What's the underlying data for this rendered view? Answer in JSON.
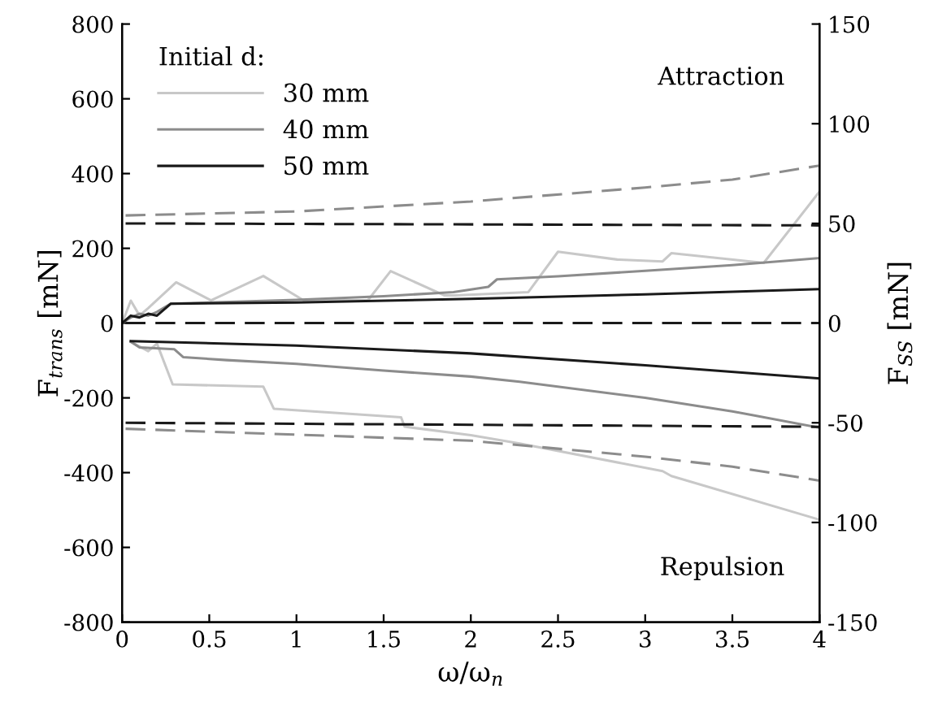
{
  "chart_data": {
    "type": "line",
    "xlabel": "ω/ω$_{n}$",
    "ylabel": "F$_{trans}$ [mN]",
    "y2label": "F$_{SS}$ [mN]",
    "legend_title": "Initial d:",
    "legend": "top left",
    "grid": false,
    "line_style": "solid",
    "marker": "none",
    "xlim": [
      0,
      4
    ],
    "xticks": [
      0,
      0.5,
      1,
      1.5,
      2,
      2.5,
      3,
      3.5,
      4
    ],
    "ylim": [
      -800,
      800
    ],
    "yticks": [
      -800,
      -600,
      -400,
      -200,
      0,
      200,
      400,
      600,
      800
    ],
    "y2lim": [
      -150,
      150
    ],
    "y2ticks": [
      -150,
      -100,
      -50,
      0,
      50,
      100,
      150
    ],
    "annotations": [
      "Attraction",
      "Repulsion"
    ],
    "series": [
      {
        "name": "30 mm",
        "color": "#c8c8c8",
        "x": [
          0,
          0.05,
          0.1,
          0.15,
          0.31,
          0.51,
          0.81,
          1.04,
          1.41,
          1.54,
          1.85,
          1.91,
          2.33,
          2.5,
          2.84,
          3.1,
          3.15,
          3.68,
          4
        ],
        "values": [
          0,
          60,
          20,
          40,
          109,
          61,
          126,
          61,
          61,
          139,
          74,
          74,
          83,
          191,
          170,
          165,
          187,
          161,
          352
        ]
      },
      {
        "name": "40 mm",
        "color": "#8c8c8c",
        "x": [
          0,
          0.05,
          0.1,
          0.15,
          0.2,
          0.28,
          0.5,
          1,
          1.5,
          1.9,
          2.1,
          2.15,
          2.5,
          3,
          3.5,
          4
        ],
        "values": [
          0,
          15,
          25,
          20,
          30,
          52,
          55,
          62,
          72,
          83,
          97,
          117,
          125,
          140,
          155,
          174
        ]
      },
      {
        "name": "50 mm",
        "color": "#1a1a1a",
        "x": [
          0,
          0.05,
          0.1,
          0.15,
          0.2,
          0.28,
          1,
          2,
          3,
          4
        ],
        "values": [
          0,
          20,
          15,
          25,
          20,
          52,
          55,
          65,
          77,
          91
        ]
      },
      {
        "color": "#c8c8c8",
        "x": [
          0.05,
          0.15,
          0.2,
          0.29,
          0.81,
          0.87,
          1.6,
          1.62,
          2,
          2.28,
          3.1,
          3.15,
          4
        ],
        "values": [
          -50,
          -75,
          -55,
          -164,
          -170,
          -229,
          -252,
          -277,
          -300,
          -322,
          -396,
          -409,
          -526
        ]
      },
      {
        "color": "#8c8c8c",
        "x": [
          0.05,
          0.1,
          0.3,
          0.35,
          0.6,
          1,
          1.5,
          2,
          2.28,
          3,
          3.5,
          4
        ],
        "values": [
          -50,
          -65,
          -70,
          -91,
          -99,
          -109,
          -127,
          -143,
          -157,
          -200,
          -236,
          -280
        ]
      },
      {
        "color": "#1a1a1a",
        "x": [
          0.05,
          1,
          2,
          3,
          4
        ],
        "values": [
          -48,
          -60,
          -81,
          -113,
          -148
        ]
      },
      {
        "color": "#8c8c8c",
        "axis": "y2",
        "line_style": "dashed",
        "x": [
          0.02,
          1,
          2,
          3,
          3.5,
          4
        ],
        "values": [
          54,
          56,
          61,
          68,
          72,
          79
        ]
      },
      {
        "color": "#8c8c8c",
        "axis": "y2",
        "line_style": "dashed",
        "x": [
          0.02,
          2,
          3,
          3.5,
          4
        ],
        "values": [
          -53,
          -59,
          -67,
          -72,
          -79
        ]
      },
      {
        "color": "#1a1a1a",
        "axis": "y2",
        "line_style": "dashed",
        "x": [
          0.02,
          4
        ],
        "values": [
          50,
          49
        ]
      },
      {
        "color": "#1a1a1a",
        "axis": "y2",
        "line_style": "dashed",
        "x": [
          0.02,
          4
        ],
        "values": [
          -50,
          -52
        ]
      },
      {
        "color": "#1a1a1a",
        "axis": "y2",
        "line_style": "dashed",
        "x": [
          0.02,
          4
        ],
        "values": [
          0,
          0
        ]
      }
    ]
  }
}
